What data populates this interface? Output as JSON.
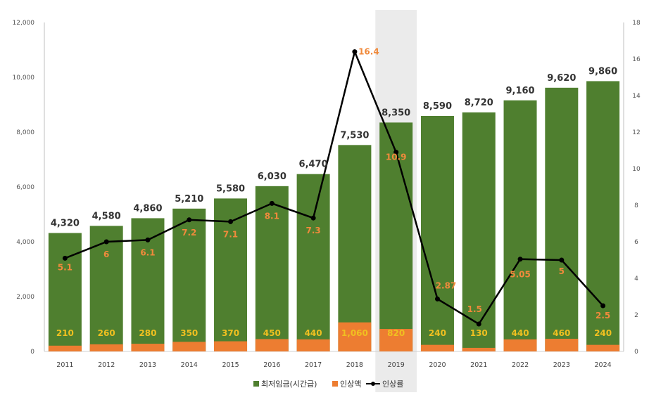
{
  "colors": {
    "wage": "#4f7f2f",
    "increase": "#ed7d31",
    "rate_line": "#000000",
    "increase_label": "#f0c020",
    "rate_label": "#f08a3c",
    "highlight": "#ebebeb"
  },
  "chart_data": {
    "type": "bar",
    "categories": [
      "2011",
      "2012",
      "2013",
      "2014",
      "2015",
      "2016",
      "2017",
      "2018",
      "2019",
      "2020",
      "2021",
      "2022",
      "2023",
      "2024"
    ],
    "highlighted_category": "2019",
    "series": [
      {
        "name": "최저임금(시간급)",
        "kind": "bar",
        "axis": "left",
        "values": [
          4320,
          4580,
          4860,
          5210,
          5580,
          6030,
          6470,
          7530,
          8350,
          8590,
          8720,
          9160,
          9620,
          9860
        ],
        "labels": [
          "4,320",
          "4,580",
          "4,860",
          "5,210",
          "5,580",
          "6,030",
          "6,470",
          "7,530",
          "8,350",
          "8,590",
          "8,720",
          "9,160",
          "9,620",
          "9,860"
        ]
      },
      {
        "name": "인상액",
        "kind": "bar",
        "axis": "left",
        "values": [
          210,
          260,
          280,
          350,
          370,
          450,
          440,
          1060,
          820,
          240,
          130,
          440,
          460,
          240
        ],
        "labels": [
          "210",
          "260",
          "280",
          "350",
          "370",
          "450",
          "440",
          "1,060",
          "820",
          "240",
          "130",
          "440",
          "460",
          "240"
        ]
      },
      {
        "name": "인상률",
        "kind": "line",
        "axis": "right",
        "values": [
          5.1,
          6,
          6.1,
          7.2,
          7.1,
          8.1,
          7.3,
          16.4,
          10.9,
          2.87,
          1.5,
          5.05,
          5,
          2.5
        ],
        "labels": [
          "5.1",
          "6",
          "6.1",
          "7.2",
          "7.1",
          "8.1",
          "7.3",
          "16.4",
          "10.9",
          "2.87",
          "1.5",
          "5.05",
          "5",
          "2.5"
        ]
      }
    ],
    "left_axis": {
      "min": 0,
      "max": 12000,
      "ticks": [
        "0",
        "2,000",
        "4,000",
        "6,000",
        "8,000",
        "10,000",
        "12,000"
      ]
    },
    "right_axis": {
      "min": 0,
      "max": 18,
      "ticks": [
        "0",
        "2",
        "4",
        "6",
        "8",
        "10",
        "12",
        "14",
        "16",
        "18"
      ]
    },
    "legend_position": "bottom-center"
  }
}
